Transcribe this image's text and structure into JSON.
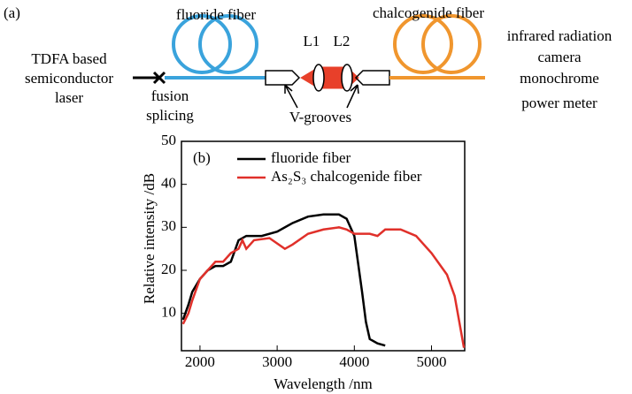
{
  "diagram": {
    "panel": "(a)",
    "source": [
      "TDFA based",
      "semiconductor",
      "laser"
    ],
    "splice": [
      "fusion",
      "splicing"
    ],
    "fiber1": "fluoride fiber",
    "fiber2": "chalcogenide fiber",
    "lens1": "L1",
    "lens2": "L2",
    "grooves": "V-grooves",
    "detectors": [
      "infrared radiation",
      "camera",
      "monochrome",
      "power meter"
    ]
  },
  "chart_data": {
    "type": "line",
    "panel": "(b)",
    "x_label": "Wavelength /nm",
    "y_label": "Relative intensity /dB",
    "xlim": [
      1760,
      5430
    ],
    "xticks": [
      2000,
      3000,
      4000,
      5000
    ],
    "ylim": [
      1.3,
      50
    ],
    "yticks": [
      10,
      20,
      30,
      40,
      50
    ],
    "series": [
      {
        "name": "fluoride fiber",
        "color": "#000000",
        "x": [
          1780,
          1850,
          1900,
          2000,
          2100,
          2200,
          2300,
          2400,
          2500,
          2600,
          2700,
          2800,
          3000,
          3200,
          3400,
          3600,
          3800,
          3900,
          4000,
          4100,
          4150,
          4200,
          4300,
          4400
        ],
        "values": [
          8.5,
          12,
          15,
          18,
          20,
          21,
          21,
          22,
          27,
          28,
          28,
          28,
          29,
          31,
          32.5,
          33,
          33,
          32,
          28,
          15,
          8,
          4,
          3,
          2.5
        ]
      },
      {
        "name": "As₂S₃ chalcogenide fiber",
        "color": "#e0302a",
        "x": [
          1780,
          1850,
          1900,
          2000,
          2100,
          2200,
          2300,
          2400,
          2500,
          2550,
          2600,
          2700,
          2900,
          3100,
          3200,
          3400,
          3600,
          3800,
          3900,
          4000,
          4200,
          4300,
          4400,
          4600,
          4800,
          5000,
          5200,
          5300,
          5380,
          5420
        ],
        "values": [
          7.5,
          10,
          13,
          18,
          20,
          22,
          22,
          24,
          25,
          27,
          25,
          27,
          27.5,
          25,
          26,
          28.5,
          29.5,
          30,
          29.5,
          28.5,
          28.5,
          28,
          29.5,
          29.5,
          28,
          24,
          19,
          14,
          6,
          2
        ]
      }
    ]
  }
}
